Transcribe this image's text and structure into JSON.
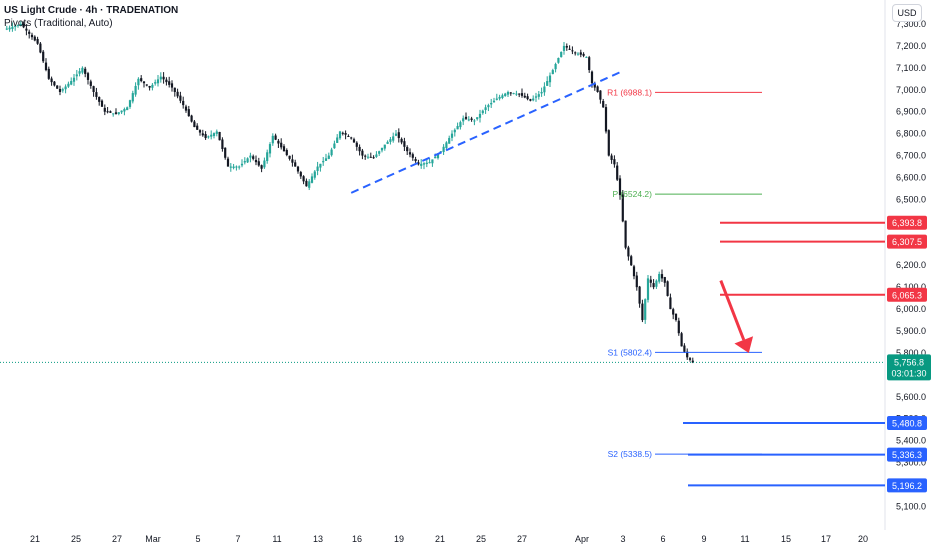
{
  "header": {
    "title": "US Light Crude · 4h · TRADENATION",
    "pivots_label": "Pivots (Traditional, Auto)"
  },
  "currency_button": "USD",
  "colors": {
    "bull": "#26a69a",
    "bear": "#131722",
    "trendline": "#2962ff",
    "resistance": "#f23645",
    "support": "#2962ff",
    "pivot_r": "#f23645",
    "pivot_p": "#4caf50",
    "pivot_s": "#2962ff",
    "arrow": "#f23645",
    "last_price": "#089981"
  },
  "chart_data": {
    "type": "candlestick",
    "title": "US Light Crude · 4h · TRADENATION",
    "y_axis": {
      "ticks": [
        "7,300.0",
        "7,200.0",
        "7,100.0",
        "7,000.0",
        "6,900.0",
        "6,800.0",
        "6,700.0",
        "6,600.0",
        "6,500.0",
        "6,400.0",
        "6,300.0",
        "6,200.0",
        "6,100.0",
        "6,000.0",
        "5,900.0",
        "5,800.0",
        "5,700.0",
        "5,600.0",
        "5,500.0",
        "5,400.0",
        "5,300.0",
        "5,200.0",
        "5,100.0"
      ],
      "range": [
        5060,
        7350
      ],
      "position": "right"
    },
    "x_axis": {
      "ticks": [
        "21",
        "25",
        "27",
        "Mar",
        "5",
        "7",
        "11",
        "13",
        "16",
        "19",
        "21",
        "25",
        "27",
        "Apr",
        "3",
        "6",
        "9",
        "11",
        "15",
        "17",
        "20"
      ]
    },
    "close_path": [
      [
        0,
        7275
      ],
      [
        3,
        7300
      ],
      [
        6,
        7210
      ],
      [
        8,
        7050
      ],
      [
        10,
        6990
      ],
      [
        12,
        7040
      ],
      [
        14,
        7100
      ],
      [
        16,
        6990
      ],
      [
        18,
        6900
      ],
      [
        20,
        6890
      ],
      [
        22,
        6920
      ],
      [
        24,
        7050
      ],
      [
        26,
        7010
      ],
      [
        28,
        7060
      ],
      [
        30,
        7010
      ],
      [
        32,
        6930
      ],
      [
        34,
        6830
      ],
      [
        36,
        6780
      ],
      [
        38,
        6810
      ],
      [
        40,
        6650
      ],
      [
        42,
        6650
      ],
      [
        44,
        6700
      ],
      [
        46,
        6640
      ],
      [
        48,
        6790
      ],
      [
        50,
        6720
      ],
      [
        52,
        6650
      ],
      [
        54,
        6560
      ],
      [
        56,
        6650
      ],
      [
        58,
        6700
      ],
      [
        60,
        6810
      ],
      [
        62,
        6780
      ],
      [
        64,
        6700
      ],
      [
        66,
        6690
      ],
      [
        68,
        6750
      ],
      [
        70,
        6800
      ],
      [
        72,
        6720
      ],
      [
        74,
        6660
      ],
      [
        76,
        6670
      ],
      [
        78,
        6720
      ],
      [
        80,
        6800
      ],
      [
        82,
        6870
      ],
      [
        84,
        6860
      ],
      [
        86,
        6920
      ],
      [
        88,
        6960
      ],
      [
        90,
        6990
      ],
      [
        92,
        6980
      ],
      [
        94,
        6950
      ],
      [
        96,
        6990
      ],
      [
        98,
        7090
      ],
      [
        100,
        7200
      ],
      [
        102,
        7170
      ],
      [
        104,
        7150
      ],
      [
        105,
        7030
      ],
      [
        106,
        6990
      ],
      [
        107,
        6920
      ],
      [
        108,
        6700
      ],
      [
        109,
        6660
      ],
      [
        110,
        6520
      ],
      [
        111,
        6280
      ],
      [
        112,
        6200
      ],
      [
        113,
        6100
      ],
      [
        114,
        5950
      ],
      [
        115,
        6140
      ],
      [
        116,
        6100
      ],
      [
        117,
        6160
      ],
      [
        118,
        6120
      ],
      [
        119,
        6000
      ],
      [
        120,
        5950
      ],
      [
        121,
        5830
      ],
      [
        122,
        5780
      ],
      [
        123,
        5756.8
      ]
    ],
    "last_price": "5,756.8",
    "countdown": "03:01:30",
    "pivots": [
      {
        "label": "R1",
        "value": "6988.1"
      },
      {
        "label": "P",
        "value": "6524.2"
      },
      {
        "label": "S1",
        "value": "5802.4"
      },
      {
        "label": "S2",
        "value": "5338.5"
      }
    ],
    "resistance_levels": [
      "6,393.8",
      "6,307.5",
      "6,065.3"
    ],
    "support_levels": [
      "5,480.8",
      "5,336.3",
      "5,196.2"
    ],
    "trendline": {
      "from": [
        62,
        6530
      ],
      "to": [
        110,
        7080
      ]
    },
    "arrow": {
      "from": [
        128,
        6130
      ],
      "to": [
        133,
        5800
      ]
    },
    "grid": false,
    "legend": "none"
  }
}
